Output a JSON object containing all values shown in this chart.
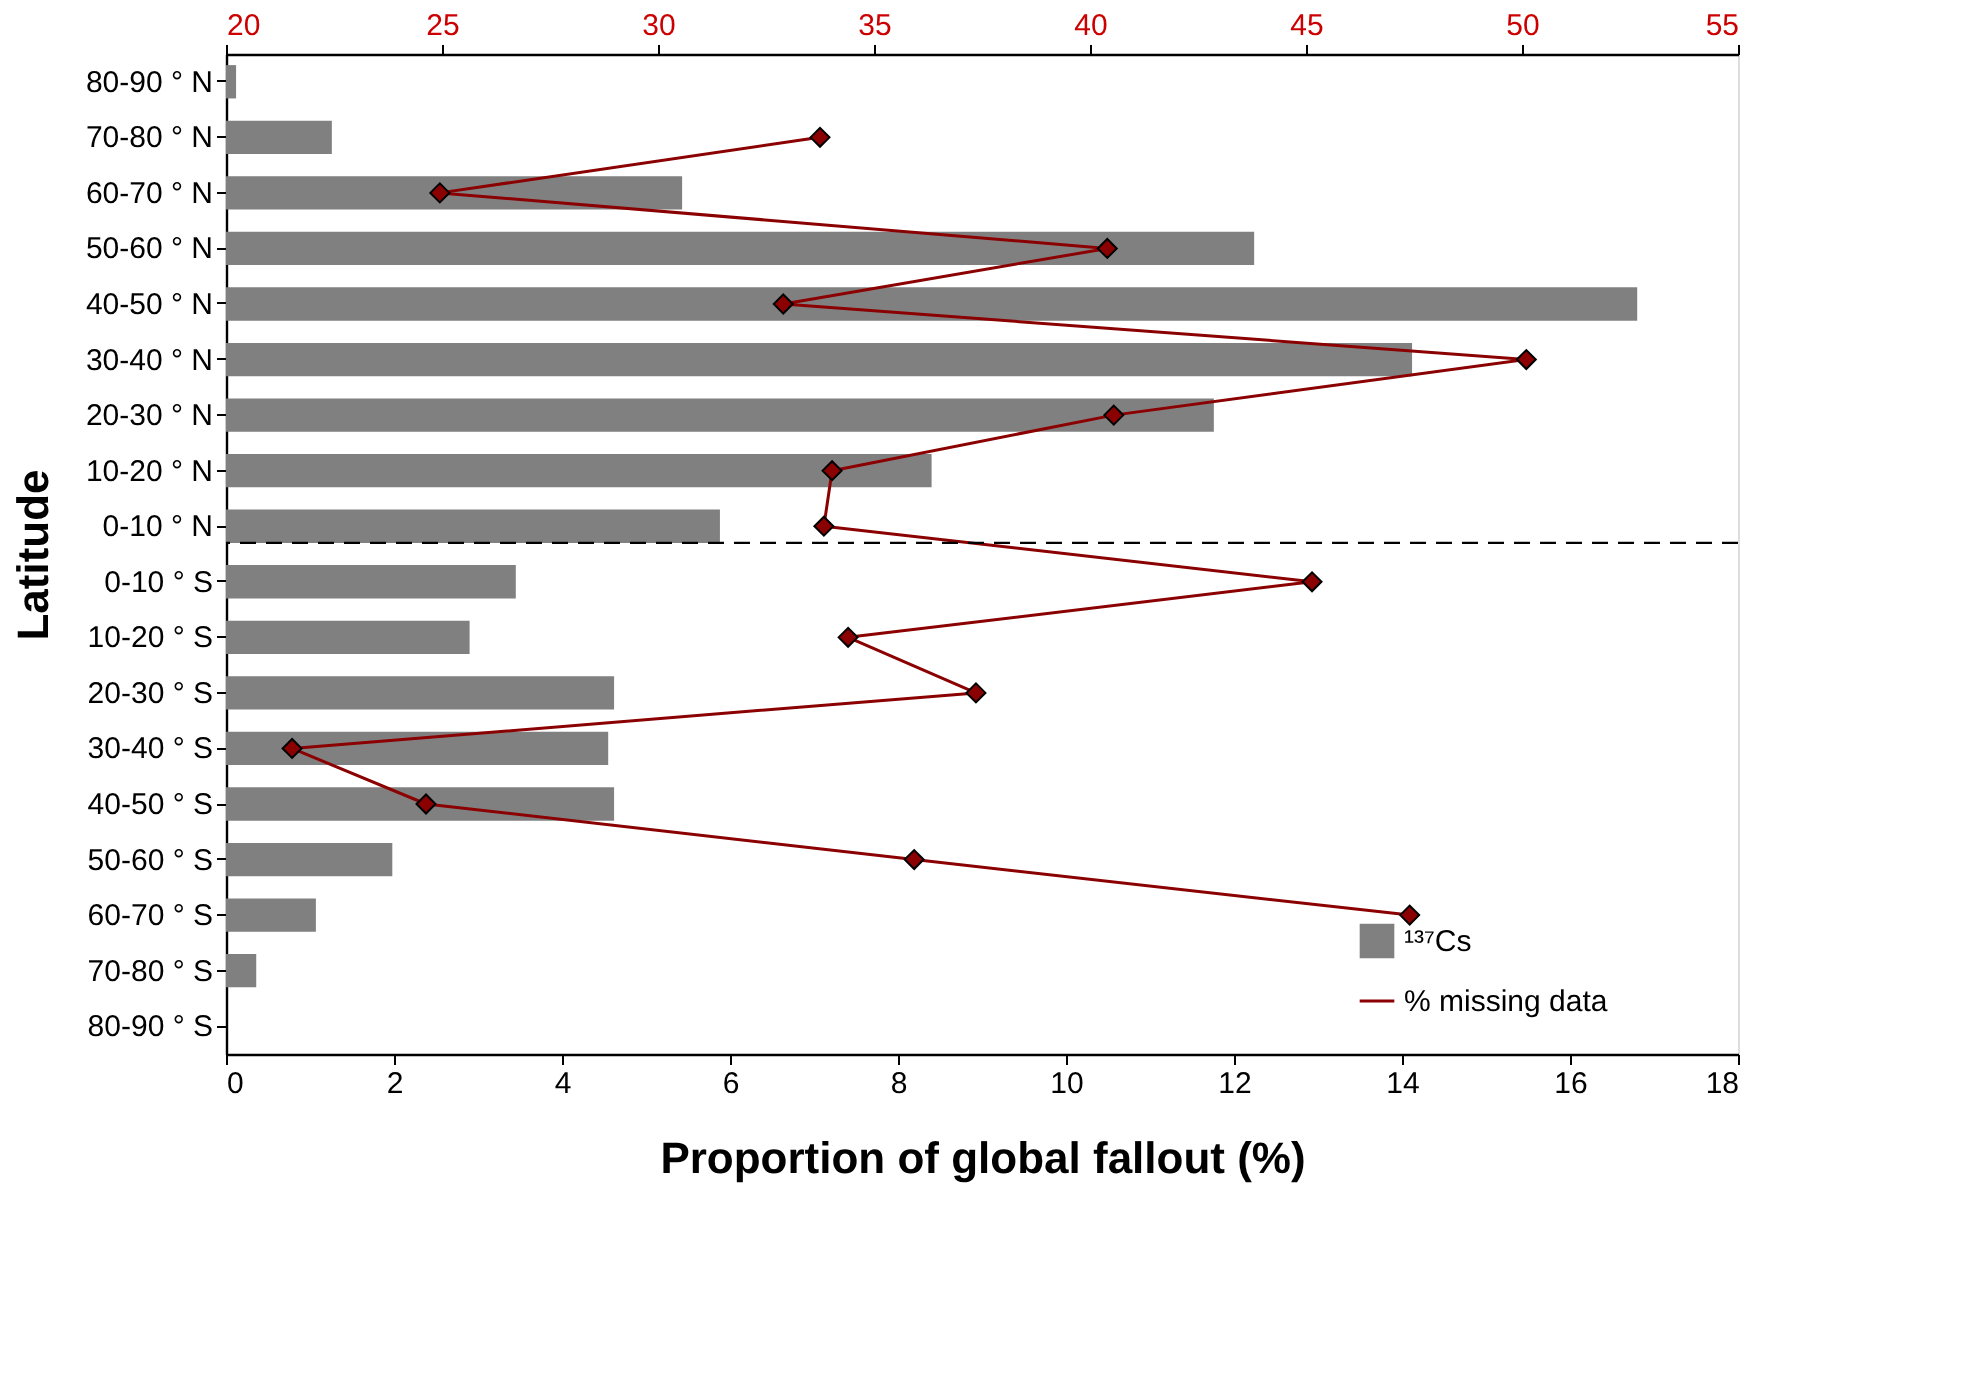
{
  "chart_data": {
    "type": "bar",
    "orientation": "horizontal",
    "xlabel": "Proportion of global fallout (%)",
    "ylabel": "Latitude",
    "categories": [
      "80-90 ° N",
      "70-80 ° N",
      "60-70 ° N",
      "50-60 ° N",
      "40-50 ° N",
      "30-40 ° N",
      "20-30 ° N",
      "10-20 ° N",
      "0-10 ° N",
      "0-10 ° S",
      "10-20 ° S",
      "20-30 ° S",
      "30-40 ° S",
      "40-50 ° S",
      "50-60 ° S",
      "60-70 ° S",
      "70-80 ° S",
      "80-90 ° S"
    ],
    "series": [
      {
        "name": "¹³⁷Cs",
        "color": "#808080",
        "values": [
          0.12,
          1.26,
          5.43,
          12.24,
          16.8,
          14.12,
          11.76,
          8.4,
          5.88,
          3.45,
          2.9,
          4.62,
          4.55,
          4.62,
          1.98,
          1.07,
          0.36,
          null
        ]
      },
      {
        "name": "% missing data",
        "type": "line",
        "axis": "x2",
        "color": "#8b0000",
        "marker": "diamond",
        "values": [
          null,
          33.75,
          24.95,
          40.4,
          32.9,
          50.1,
          40.55,
          34.03,
          33.84,
          45.14,
          34.4,
          37.36,
          21.53,
          24.63,
          35.93,
          47.4,
          null,
          null
        ]
      }
    ],
    "xlim": [
      0,
      18
    ],
    "xticks": [
      0,
      2,
      4,
      6,
      8,
      10,
      12,
      14,
      16,
      18
    ],
    "x2lim": [
      20,
      55
    ],
    "x2ticks": [
      20,
      25,
      30,
      35,
      40,
      45,
      50,
      55
    ],
    "ref_lines": [
      {
        "axis": "y",
        "value": "0-10 ° N",
        "line_style": "dashed",
        "color": "#000000"
      }
    ],
    "legend": "bottom right",
    "grid": false
  }
}
